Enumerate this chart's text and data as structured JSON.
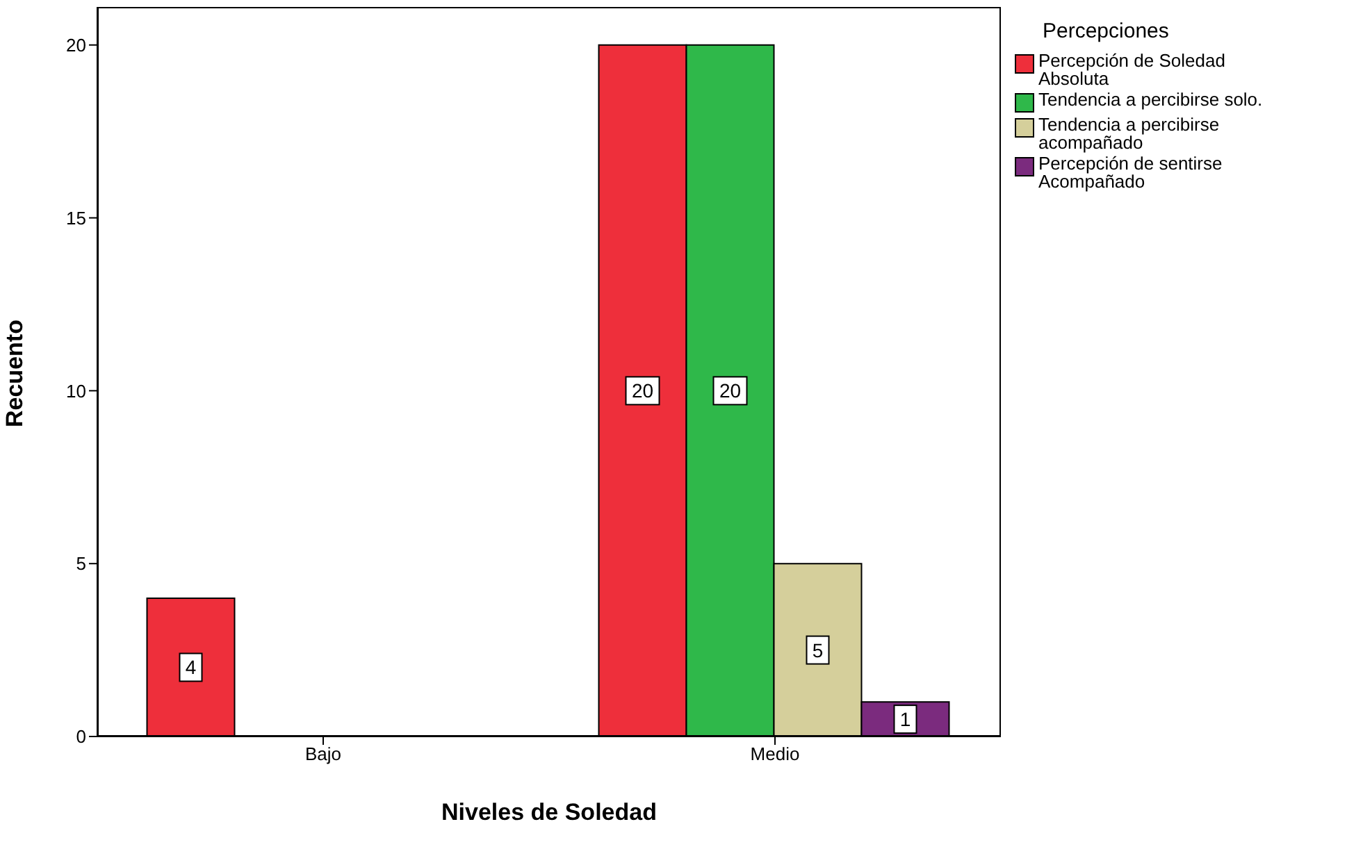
{
  "chart_data": {
    "type": "bar",
    "xlabel": "Niveles de Soledad",
    "ylabel": "Recuento",
    "legend_title": "Percepciones",
    "categories": [
      "Bajo",
      "Medio"
    ],
    "series": [
      {
        "name": "Percepción de Soledad Absoluta",
        "color": "#ee2f3b",
        "values": [
          4,
          20
        ]
      },
      {
        "name": "Tendencia a percibirse solo.",
        "color": "#2fb84a",
        "values": [
          null,
          20
        ]
      },
      {
        "name": "Tendencia a percibirse acompañado",
        "color": "#d5cf9b",
        "values": [
          null,
          5
        ]
      },
      {
        "name": "Percepción de sentirse Acompañado",
        "color": "#7b2b7e",
        "values": [
          null,
          1
        ]
      }
    ],
    "ylim": [
      0,
      21.1
    ],
    "yticks": [
      0,
      5,
      10,
      15,
      20
    ],
    "legend": "right",
    "data_labels": true
  }
}
